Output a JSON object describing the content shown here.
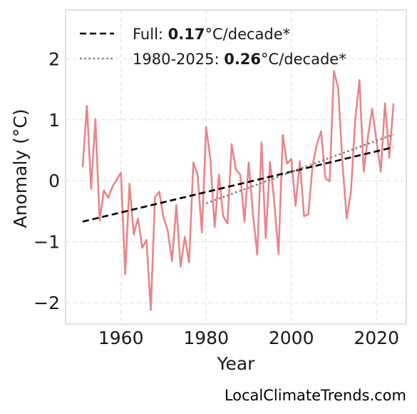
{
  "chart_data": {
    "type": "line",
    "xlabel": "Year",
    "ylabel": "Anomaly (°C)",
    "xlim": [
      1947,
      2027
    ],
    "ylim": [
      -2.35,
      2.8
    ],
    "xticks": [
      1960,
      1980,
      2000,
      2020
    ],
    "yticks": [
      -2,
      -1,
      0,
      1,
      2
    ],
    "ytick_labels": [
      "−2",
      "−1",
      "0",
      "1",
      "2"
    ],
    "grid": true,
    "legend_position": "top-left",
    "series": [
      {
        "style": "line",
        "color": "#e8868a",
        "x": [
          1951,
          1952,
          1953,
          1954,
          1955,
          1956,
          1957,
          1958,
          1959,
          1960,
          1961,
          1962,
          1963,
          1964,
          1965,
          1966,
          1967,
          1968,
          1969,
          1970,
          1971,
          1972,
          1973,
          1974,
          1975,
          1976,
          1977,
          1978,
          1979,
          1980,
          1981,
          1982,
          1983,
          1984,
          1985,
          1986,
          1987,
          1988,
          1989,
          1990,
          1991,
          1992,
          1993,
          1994,
          1995,
          1996,
          1997,
          1998,
          1999,
          2000,
          2001,
          2002,
          2003,
          2004,
          2005,
          2006,
          2007,
          2008,
          2009,
          2010,
          2011,
          2012,
          2013,
          2014,
          2015,
          2016,
          2017,
          2018,
          2019,
          2020,
          2021,
          2022,
          2023,
          2024
        ],
        "y": [
          0.22,
          1.23,
          -0.13,
          1.01,
          -0.65,
          -0.16,
          -0.28,
          -0.1,
          0.02,
          0.13,
          -1.53,
          -0.05,
          -0.88,
          -0.62,
          -1.1,
          -0.97,
          -2.12,
          -0.27,
          -0.18,
          -0.6,
          -0.82,
          -1.32,
          -0.4,
          -1.41,
          -0.92,
          -1.34,
          0.3,
          0.1,
          -0.85,
          0.88,
          0.35,
          -0.76,
          0.1,
          -0.58,
          -0.7,
          0.6,
          0.18,
          0.1,
          -0.67,
          0.3,
          -0.55,
          -1.21,
          0.63,
          -0.94,
          0.31,
          -0.35,
          -1.2,
          0.75,
          0.28,
          0.36,
          -0.41,
          0.32,
          -0.58,
          -0.55,
          0.25,
          0.6,
          0.81,
          0.04,
          -0.01,
          1.8,
          1.52,
          0.3,
          -0.62,
          -0.18,
          1.0,
          1.65,
          0.15,
          0.73,
          1.18,
          0.65,
          0.15,
          1.27,
          0.38,
          1.27
        ]
      },
      {
        "name": "Full",
        "style": "dashed",
        "color": "#000000",
        "x": [
          1951,
          2024
        ],
        "y": [
          -0.67,
          0.55
        ]
      },
      {
        "name": "1980-2025",
        "style": "dotted",
        "color": "#808080",
        "x": [
          1980,
          2024
        ],
        "y": [
          -0.37,
          0.76
        ]
      }
    ],
    "legend": [
      {
        "prefix": "Full: ",
        "bold": "0.17",
        "suffix": "°C/decade*",
        "style": "dashed",
        "color": "#000000"
      },
      {
        "prefix": "1980-2025: ",
        "bold": "0.26",
        "suffix": "°C/decade*",
        "style": "dotted",
        "color": "#808080"
      }
    ]
  },
  "watermark": "LocalClimateTrends.com"
}
